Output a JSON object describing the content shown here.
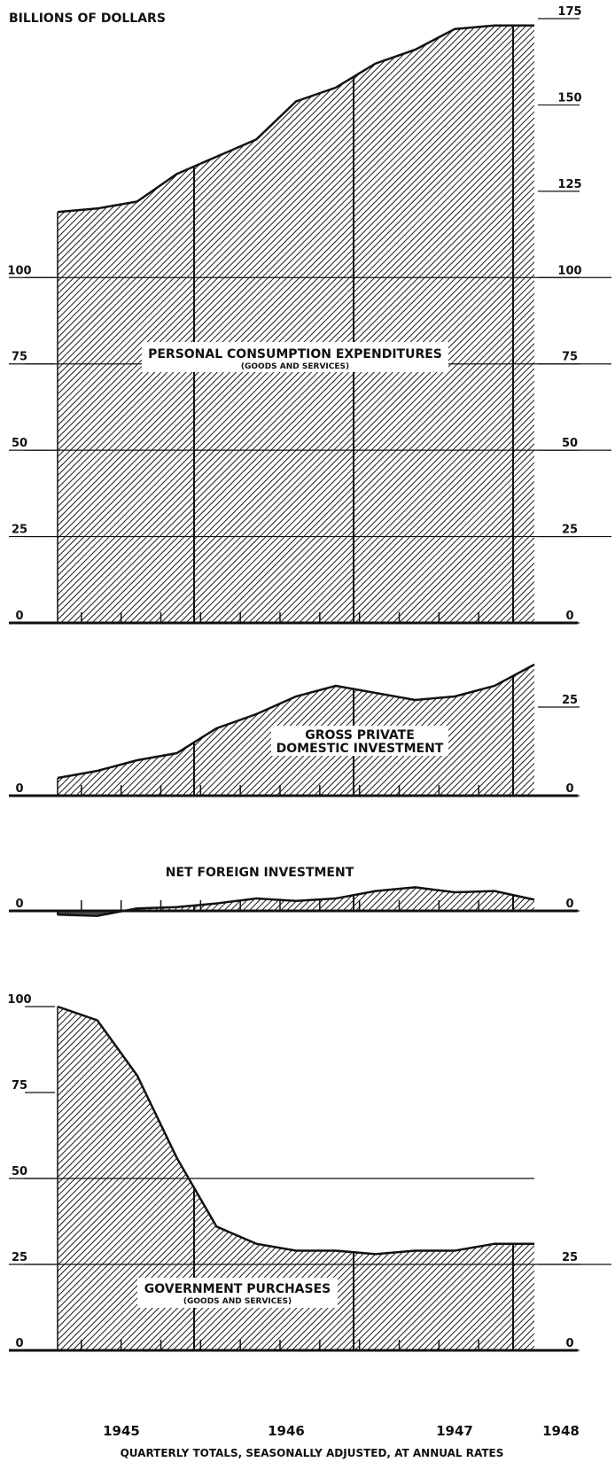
{
  "chart_data": {
    "type": "area",
    "title": "",
    "ylabel": "BILLIONS OF DOLLARS",
    "xlabel": "QUARTERLY TOTALS, SEASONALLY ADJUSTED, AT ANNUAL RATES",
    "x": [
      "1945 Q1",
      "1945 Q2",
      "1945 Q3",
      "1945 Q4",
      "1946 Q1",
      "1946 Q2",
      "1946 Q3",
      "1946 Q4",
      "1947 Q1",
      "1947 Q2",
      "1947 Q3",
      "1947 Q4",
      "1948 Q1"
    ],
    "year_labels": [
      "1945",
      "1946",
      "1947",
      "1948"
    ],
    "panels": [
      {
        "id": "pce",
        "name": "PERSONAL CONSUMPTION EXPENDITURES",
        "subtitle": "(GOODS AND SERVICES)",
        "ylim": [
          0,
          175
        ],
        "left_ticks": [
          "0",
          "25",
          "50",
          "75",
          "100"
        ],
        "right_ticks": [
          "0",
          "25",
          "50",
          "75",
          "100",
          "125",
          "150",
          "175"
        ],
        "values": [
          119,
          120,
          122,
          130,
          135,
          140,
          151,
          155,
          162,
          166,
          172,
          173,
          173
        ]
      },
      {
        "id": "gpdi",
        "name_lines": [
          "GROSS PRIVATE",
          "DOMESTIC INVESTMENT"
        ],
        "ylim": [
          0,
          35
        ],
        "left_ticks": [
          "0"
        ],
        "right_ticks": [
          "0",
          "25"
        ],
        "values": [
          5,
          7,
          10,
          12,
          19,
          23,
          28,
          31,
          29,
          27,
          28,
          31,
          37
        ]
      },
      {
        "id": "nfi",
        "name": "NET FOREIGN INVESTMENT",
        "ylim": [
          -5,
          10
        ],
        "left_ticks": [
          "0"
        ],
        "right_ticks": [
          "0"
        ],
        "values": [
          -1.5,
          -2,
          1,
          1.5,
          3,
          5,
          4,
          5,
          8,
          9.5,
          7.5,
          8,
          4.5
        ]
      },
      {
        "id": "gov",
        "name": "GOVERNMENT PURCHASES",
        "subtitle": "(GOODS AND SERVICES)",
        "ylim": [
          0,
          100
        ],
        "left_ticks": [
          "0",
          "25",
          "50",
          "75",
          "100"
        ],
        "right_ticks": [
          "0",
          "25"
        ],
        "values": [
          100,
          96,
          80,
          56,
          36,
          31,
          29,
          29,
          28,
          29,
          29,
          31,
          31
        ]
      }
    ]
  }
}
